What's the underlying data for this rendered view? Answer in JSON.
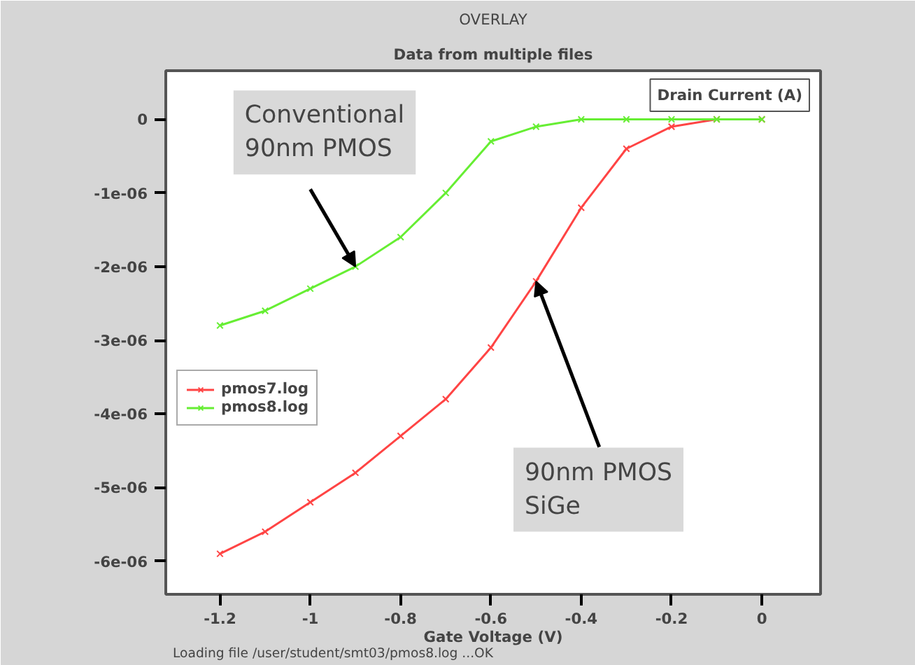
{
  "chart_data": {
    "type": "line",
    "title": "OVERLAY",
    "subtitle": "Data from multiple files",
    "xlabel": "Gate Voltage (V)",
    "ylabel": "Drain Current (A)",
    "x": [
      -1.2,
      -1.1,
      -1.0,
      -0.9,
      -0.8,
      -0.7,
      -0.6,
      -0.5,
      -0.4,
      -0.3,
      -0.2,
      -0.1,
      0
    ],
    "series": [
      {
        "name": "pmos7.log",
        "color": "#ff4444",
        "values": [
          -5.9e-06,
          -5.6e-06,
          -5.2e-06,
          -4.8e-06,
          -4.3e-06,
          -3.8e-06,
          -3.1e-06,
          -2.2e-06,
          -1.2e-06,
          -4e-07,
          -1e-07,
          0,
          0
        ]
      },
      {
        "name": "pmos8.log",
        "color": "#66ee33",
        "values": [
          -2.8e-06,
          -2.6e-06,
          -2.3e-06,
          -2e-06,
          -1.6e-06,
          -1e-06,
          -3e-07,
          -1e-07,
          0,
          0,
          0,
          0,
          0
        ]
      }
    ],
    "xlim": [
      -1.32,
      0.13
    ],
    "ylim": [
      -6.45e-06,
      6.6e-07
    ],
    "xticks": [
      -1.2,
      -1,
      -0.8,
      -0.6,
      -0.4,
      -0.2,
      0
    ],
    "yticks": [
      {
        "value": -6e-06,
        "label": "-6e-06"
      },
      {
        "value": -5e-06,
        "label": "-5e-06"
      },
      {
        "value": -4e-06,
        "label": "-4e-06"
      },
      {
        "value": -3e-06,
        "label": "-3e-06"
      },
      {
        "value": -2e-06,
        "label": "-2e-06"
      },
      {
        "value": -1e-06,
        "label": "-1e-06"
      },
      0
    ],
    "annotations": [
      {
        "text": "Conventional\n90nm PMOS",
        "x": -0.9,
        "y": -2e-06
      },
      {
        "text": "90nm PMOS\nSiGe",
        "x": -0.5,
        "y": -2.2e-06
      },
      "Loading file /user/student/smt03/pmos8.log ...OK"
    ],
    "legend": "center left",
    "marker": "cross",
    "line_style": "solid",
    "grid": false
  }
}
